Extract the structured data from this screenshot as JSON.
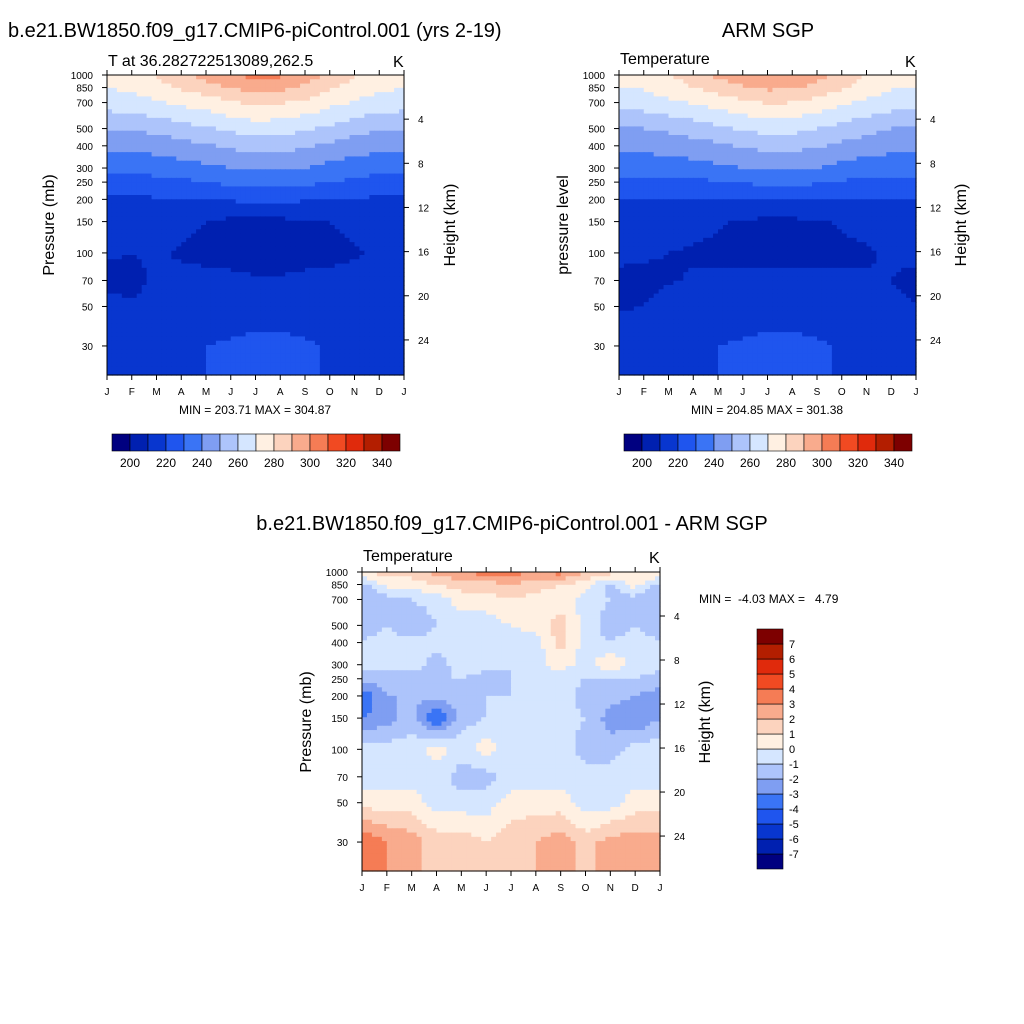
{
  "palette": [
    "#000080",
    "#0020b0",
    "#0836cf",
    "#1f55ee",
    "#3a74f5",
    "#7f9ef2",
    "#adc4fb",
    "#d5e6ff",
    "#fff0e2",
    "#fcd3be",
    "#f9ab8d",
    "#f57c55",
    "#f14a22",
    "#e02a0c",
    "#b31e00",
    "#7d0000"
  ],
  "diff_palette": [
    "#000080",
    "#0020b0",
    "#0836cf",
    "#1f55ee",
    "#3a74f5",
    "#7f9ef2",
    "#adc4fb",
    "#d5e6ff",
    "#fff0e2",
    "#fcd3be",
    "#f9ab8d",
    "#f57c55",
    "#f14a22",
    "#e02a0c",
    "#b31e00",
    "#7d0000"
  ],
  "chart_data": [
    {
      "type": "heatmap",
      "panel": "model",
      "title": "b.e21.BW1850.f09_g17.CMIP6-piControl.001 (yrs 2-19)",
      "subtitle_left": "T at 36.282722513089,262.5",
      "units": "K",
      "ylabel": "Pressure (mb)",
      "y2label": "Height (km)",
      "x": [
        "J",
        "F",
        "M",
        "A",
        "M",
        "J",
        "J",
        "A",
        "S",
        "O",
        "N",
        "D",
        "J"
      ],
      "y": [
        1000,
        850,
        700,
        500,
        400,
        300,
        250,
        200,
        150,
        100,
        70,
        50,
        30
      ],
      "y2_ticks": [
        4,
        8,
        12,
        16,
        20,
        24
      ],
      "stats": "MIN = 203.71 MAX = 304.87",
      "levels": [
        200,
        210,
        220,
        230,
        240,
        250,
        260,
        270,
        280,
        290,
        300,
        310,
        320,
        330,
        340
      ],
      "colorbar_labels": [
        "200",
        "220",
        "240",
        "260",
        "280",
        "300",
        "320",
        "340"
      ],
      "values": [
        [
          274,
          276,
          281,
          287,
          294,
          299,
          303,
          302,
          296,
          288,
          281,
          276,
          274
        ],
        [
          270,
          272,
          276,
          281,
          286,
          290,
          294,
          293,
          288,
          282,
          276,
          272,
          270
        ],
        [
          265,
          266,
          269,
          272,
          275,
          279,
          282,
          281,
          278,
          273,
          269,
          266,
          265
        ],
        [
          250,
          251,
          253,
          256,
          259,
          262,
          265,
          264,
          261,
          258,
          254,
          251,
          250
        ],
        [
          242,
          243,
          244,
          246,
          249,
          252,
          254,
          254,
          251,
          248,
          245,
          243,
          242
        ],
        [
          233,
          233,
          234,
          236,
          238,
          240,
          242,
          242,
          240,
          237,
          235,
          233,
          233
        ],
        [
          226,
          226,
          227,
          228,
          230,
          232,
          233,
          233,
          232,
          230,
          228,
          226,
          226
        ],
        [
          219,
          219,
          219,
          219,
          220,
          221,
          222,
          222,
          221,
          220,
          219,
          219,
          219
        ],
        [
          215,
          215,
          214,
          212,
          210,
          208,
          208,
          208,
          209,
          210,
          212,
          214,
          215
        ],
        [
          211,
          210,
          211,
          209,
          208,
          207,
          206,
          206,
          207,
          208,
          209,
          212,
          214
        ],
        [
          208,
          207,
          212,
          212,
          212,
          212,
          211,
          211,
          212,
          212,
          213,
          214,
          210
        ],
        [
          213,
          211,
          214,
          216,
          216,
          216,
          216,
          216,
          216,
          216,
          215,
          214,
          213
        ],
        [
          218,
          218,
          219,
          219,
          220,
          221,
          222,
          222,
          221,
          219,
          218,
          218,
          218
        ]
      ]
    },
    {
      "type": "heatmap",
      "panel": "obs",
      "title": "ARM SGP",
      "subtitle_left": "Temperature",
      "units": "K",
      "ylabel": "pressure level",
      "y2label": "Height (km)",
      "x": [
        "J",
        "F",
        "M",
        "A",
        "M",
        "J",
        "J",
        "A",
        "S",
        "O",
        "N",
        "D",
        "J"
      ],
      "y": [
        1000,
        850,
        700,
        500,
        400,
        300,
        250,
        200,
        150,
        100,
        70,
        50,
        30
      ],
      "y2_ticks": [
        4,
        8,
        12,
        16,
        20,
        24
      ],
      "stats": "MIN = 204.85 MAX = 301.38",
      "levels": [
        200,
        210,
        220,
        230,
        240,
        250,
        260,
        270,
        280,
        290,
        300,
        310,
        320,
        330,
        340
      ],
      "colorbar_labels": [
        "200",
        "220",
        "240",
        "260",
        "280",
        "300",
        "320",
        "340"
      ],
      "values": [
        [
          273,
          275,
          280,
          285,
          292,
          297,
          300,
          299,
          294,
          287,
          280,
          275,
          273
        ],
        [
          270,
          271,
          275,
          280,
          285,
          289,
          292,
          291,
          287,
          281,
          275,
          271,
          270
        ],
        [
          265,
          265,
          268,
          271,
          274,
          278,
          281,
          280,
          277,
          272,
          268,
          265,
          265
        ],
        [
          250,
          250,
          252,
          255,
          258,
          261,
          264,
          263,
          260,
          257,
          253,
          250,
          250
        ],
        [
          243,
          243,
          244,
          246,
          248,
          251,
          253,
          253,
          251,
          248,
          245,
          243,
          243
        ],
        [
          234,
          234,
          235,
          236,
          238,
          240,
          241,
          241,
          240,
          237,
          235,
          234,
          234
        ],
        [
          227,
          227,
          227,
          228,
          229,
          231,
          232,
          232,
          231,
          229,
          228,
          227,
          227
        ],
        [
          220,
          220,
          220,
          219,
          219,
          220,
          221,
          221,
          221,
          220,
          219,
          220,
          220
        ],
        [
          215,
          215,
          214,
          213,
          211,
          209,
          208,
          208,
          209,
          211,
          213,
          214,
          215
        ],
        [
          212,
          211,
          210,
          209,
          208,
          207,
          207,
          207,
          207,
          208,
          209,
          211,
          212
        ],
        [
          208,
          208,
          209,
          211,
          212,
          212,
          212,
          212,
          212,
          212,
          211,
          210,
          208
        ],
        [
          209,
          210,
          214,
          216,
          216,
          216,
          216,
          216,
          216,
          215,
          215,
          212,
          210
        ],
        [
          218,
          218,
          219,
          219,
          220,
          221,
          222,
          222,
          221,
          219,
          218,
          218,
          218
        ]
      ]
    },
    {
      "type": "heatmap",
      "panel": "diff",
      "title": "b.e21.BW1850.f09_g17.CMIP6-piControl.001 - ARM SGP",
      "subtitle_left": "Temperature",
      "units": "K",
      "ylabel": "Pressure (mb)",
      "y2label": "Height (km)",
      "x": [
        "J",
        "F",
        "M",
        "A",
        "M",
        "J",
        "J",
        "A",
        "S",
        "O",
        "N",
        "D",
        "J"
      ],
      "y": [
        1000,
        850,
        700,
        500,
        400,
        300,
        250,
        200,
        150,
        100,
        70,
        50,
        30
      ],
      "y2_ticks": [
        4,
        8,
        12,
        16,
        20,
        24
      ],
      "stats": "MIN =  -4.03 MAX =   4.79",
      "levels": [
        -7,
        -6,
        -5,
        -4,
        -3,
        -2,
        -1,
        0,
        1,
        2,
        3,
        4,
        5,
        6,
        7
      ],
      "colorbar_labels": [
        "-7",
        "-6",
        "-5",
        "-4",
        "-3",
        "-2",
        "-1",
        "0",
        "1",
        "2",
        "3",
        "4",
        "5",
        "6",
        "7"
      ],
      "values": [
        [
          1.0,
          1.5,
          1.5,
          2.5,
          3.0,
          3.5,
          3.5,
          3.0,
          3.5,
          2.0,
          1.5,
          1.0,
          1.0
        ],
        [
          -1.5,
          0.5,
          0.5,
          1.0,
          1.5,
          1.5,
          2.0,
          1.5,
          1.0,
          0.5,
          -1.5,
          0.5,
          -1.5
        ],
        [
          -2.0,
          -1.5,
          -1.0,
          -0.5,
          0.5,
          0.5,
          1.0,
          0.5,
          0.5,
          -0.5,
          -1.0,
          -1.5,
          -2.0
        ],
        [
          -1.5,
          -1.0,
          -2.0,
          -1.0,
          -0.5,
          -0.5,
          0.0,
          0.5,
          1.5,
          -0.5,
          -1.5,
          -1.0,
          -1.5
        ],
        [
          -1.0,
          -0.5,
          -0.5,
          -0.5,
          -0.5,
          -0.5,
          -0.5,
          -0.5,
          1.5,
          -0.5,
          -1.0,
          -0.5,
          -1.0
        ],
        [
          -0.5,
          -0.5,
          -0.5,
          -1.5,
          -0.5,
          -0.5,
          -1.0,
          -0.5,
          0.5,
          -0.5,
          1.0,
          -0.5,
          -0.5
        ],
        [
          -1.5,
          -1.5,
          -1.5,
          -1.0,
          -1.0,
          -1.5,
          -1.0,
          -0.5,
          -0.5,
          -1.0,
          -1.0,
          -1.0,
          -1.5
        ],
        [
          -4.0,
          -2.0,
          -2.0,
          -1.5,
          -1.5,
          -1.0,
          -1.0,
          -1.0,
          -0.5,
          -1.5,
          -1.5,
          -2.0,
          -2.5
        ],
        [
          -3.0,
          -2.5,
          -1.5,
          -4.0,
          -1.5,
          -1.0,
          -0.5,
          -0.5,
          -0.5,
          -1.0,
          -2.5,
          -3.0,
          -2.0
        ],
        [
          -0.5,
          -0.5,
          -0.5,
          0.5,
          -0.5,
          0.5,
          -0.5,
          -0.5,
          -0.5,
          -1.5,
          -1.5,
          -0.5,
          -0.5
        ],
        [
          -0.5,
          -0.5,
          -0.5,
          -0.5,
          -1.5,
          -1.5,
          -0.5,
          -0.5,
          -0.5,
          -0.5,
          -0.5,
          -0.5,
          -0.5
        ],
        [
          0.5,
          0.5,
          0.5,
          -0.5,
          -0.5,
          -0.5,
          0.5,
          0.5,
          0.5,
          -0.5,
          -0.5,
          0.5,
          0.5
        ],
        [
          4.0,
          3.0,
          2.5,
          1.5,
          1.5,
          1.0,
          1.5,
          2.0,
          2.5,
          1.5,
          2.5,
          2.5,
          2.5
        ]
      ]
    }
  ]
}
